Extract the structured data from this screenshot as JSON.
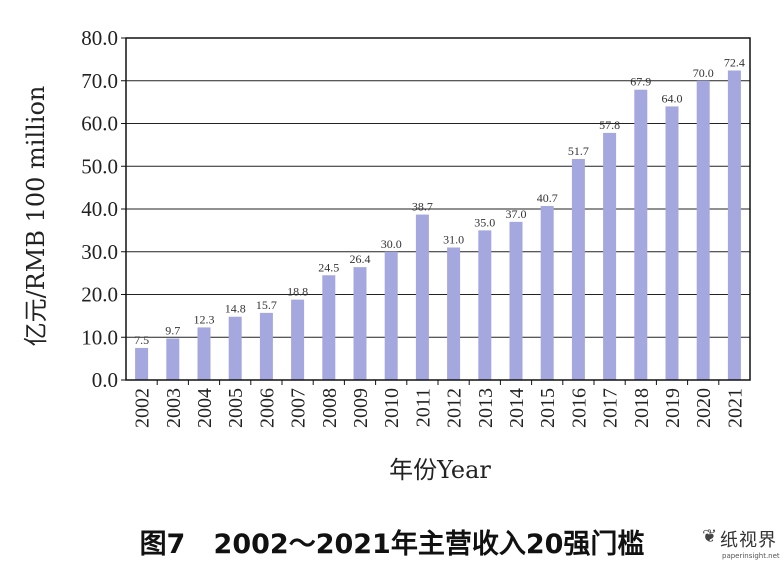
{
  "chart_data": {
    "type": "bar",
    "categories": [
      "2002",
      "2003",
      "2004",
      "2005",
      "2006",
      "2007",
      "2008",
      "2009",
      "2010",
      "2011",
      "2012",
      "2013",
      "2014",
      "2015",
      "2016",
      "2017",
      "2018",
      "2019",
      "2020",
      "2021"
    ],
    "values": [
      7.5,
      9.7,
      12.3,
      14.8,
      15.7,
      18.8,
      24.5,
      26.4,
      30.0,
      38.7,
      31.0,
      35.0,
      37.0,
      40.7,
      51.7,
      57.8,
      67.9,
      64.0,
      70.0,
      72.4
    ],
    "value_labels": [
      "7.5",
      "9.7",
      "12.3",
      "14.8",
      "15.7",
      "18.8",
      "24.5",
      "26.4",
      "30.0",
      "38.7",
      "31.0",
      "35.0",
      "37.0",
      "40.7",
      "51.7",
      "57.8",
      "67.9",
      "64.0",
      "70.0",
      "72.4"
    ],
    "ylabel": "亿元/RMB 100 million",
    "xlabel": "年份Year",
    "ylim": [
      0,
      80
    ],
    "yticks": [
      "0.0",
      "10.0",
      "20.0",
      "30.0",
      "40.0",
      "50.0",
      "60.0",
      "70.0",
      "80.0"
    ],
    "grid": true,
    "bar_color": "#a5a8df"
  },
  "caption": "图7   2002～2021年主营收入20强门槛",
  "watermark": {
    "logo": "❦",
    "text": "纸视界",
    "url": "paperinsight.net"
  }
}
